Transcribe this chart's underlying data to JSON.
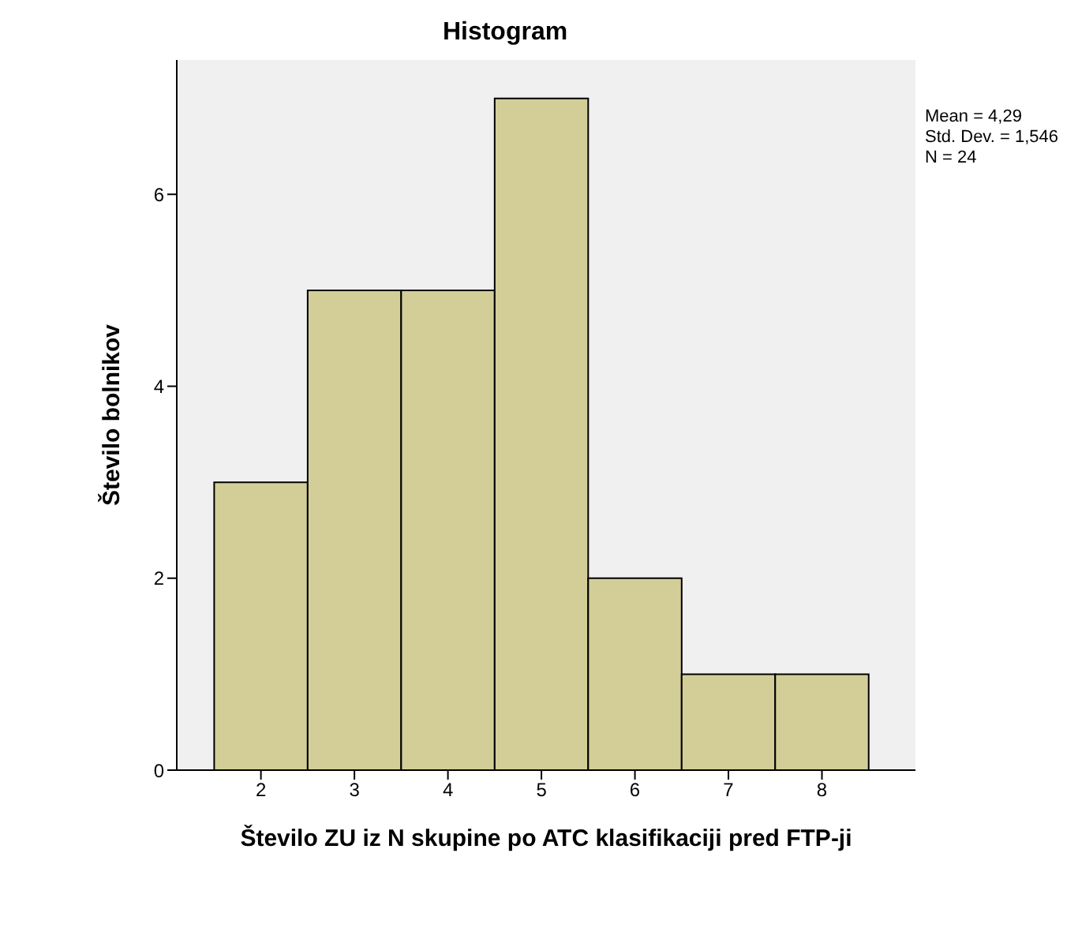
{
  "chart_data": {
    "type": "histogram",
    "title": "Histogram",
    "xlabel": "Število ZU iz N skupine po ATC klasifikaciji pred FTP-ji",
    "ylabel": "Število bolnikov",
    "bins": [
      1.5,
      2.5,
      3.5,
      4.5,
      5.5,
      6.5,
      7.5,
      8.5
    ],
    "values": [
      3,
      5,
      5,
      7,
      2,
      1,
      1
    ],
    "color": "#d3ce98",
    "xlim": [
      1.1,
      9.0
    ],
    "xticks": [
      2,
      3,
      4,
      5,
      6,
      7,
      8
    ],
    "ylim": [
      0,
      7.4
    ],
    "yticks": [
      0,
      2,
      4,
      6
    ],
    "grid": false,
    "annotations": [
      "Mean = 4,29",
      "Std. Dev. = 1,546",
      "N = 24"
    ]
  }
}
